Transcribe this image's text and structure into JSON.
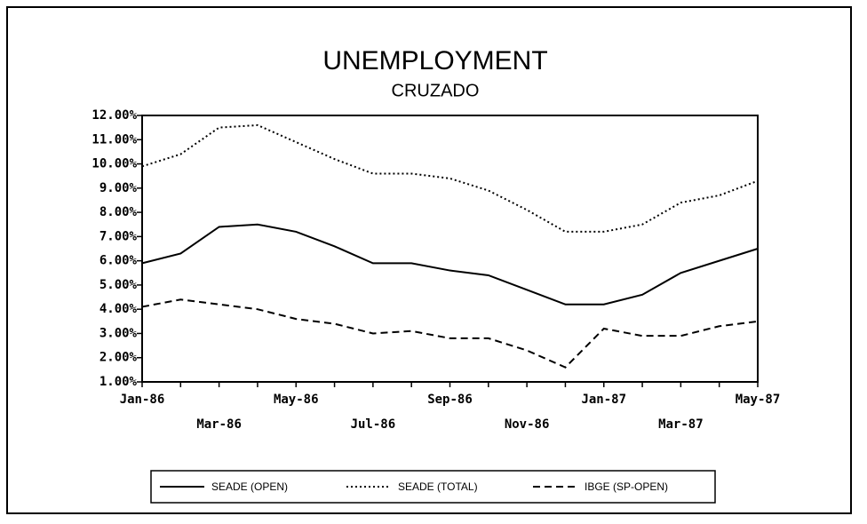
{
  "chart_data": {
    "type": "line",
    "title": "UNEMPLOYMENT",
    "subtitle": "CRUZADO",
    "categories": [
      "Jan-86",
      null,
      "Mar-86",
      null,
      "May-86",
      null,
      "Jul-86",
      null,
      "Sep-86",
      null,
      "Nov-86",
      null,
      "Jan-87",
      null,
      "Mar-87",
      null,
      "May-87"
    ],
    "series": [
      {
        "name": "SEADE (OPEN)",
        "color": "#000000",
        "style": "solid",
        "values": [
          5.9,
          6.3,
          7.4,
          7.5,
          7.2,
          6.6,
          5.9,
          5.9,
          5.6,
          5.4,
          4.8,
          4.2,
          4.2,
          4.6,
          5.5,
          6.0,
          6.5
        ]
      },
      {
        "name": "SEADE (TOTAL)",
        "color": "#000000",
        "style": "dotted",
        "values": [
          9.9,
          10.4,
          11.5,
          11.6,
          10.9,
          10.2,
          9.6,
          9.6,
          9.4,
          8.9,
          8.1,
          7.2,
          7.2,
          7.5,
          8.4,
          8.7,
          9.3
        ]
      },
      {
        "name": "IBGE (SP-OPEN)",
        "color": "#000000",
        "style": "dashed",
        "values": [
          4.1,
          4.4,
          4.2,
          4.0,
          3.6,
          3.4,
          3.0,
          3.1,
          2.8,
          2.8,
          2.3,
          1.6,
          3.2,
          2.9,
          2.9,
          3.3,
          3.5
        ]
      }
    ],
    "ylim": [
      1,
      12
    ],
    "yticks": [
      {
        "value": 1,
        "label": "1.00%"
      },
      {
        "value": 2,
        "label": "2.00%"
      },
      {
        "value": 3,
        "label": "3.00%"
      },
      {
        "value": 4,
        "label": "4.00%"
      },
      {
        "value": 5,
        "label": "5.00%"
      },
      {
        "value": 6,
        "label": "6.00%"
      },
      {
        "value": 7,
        "label": "7.00%"
      },
      {
        "value": 8,
        "label": "8.00%"
      },
      {
        "value": 9,
        "label": "9.00%"
      },
      {
        "value": 10,
        "label": "10.00%"
      },
      {
        "value": 11,
        "label": "11.00%"
      },
      {
        "value": 12,
        "label": "12.00%"
      }
    ],
    "legend": "bottom"
  }
}
